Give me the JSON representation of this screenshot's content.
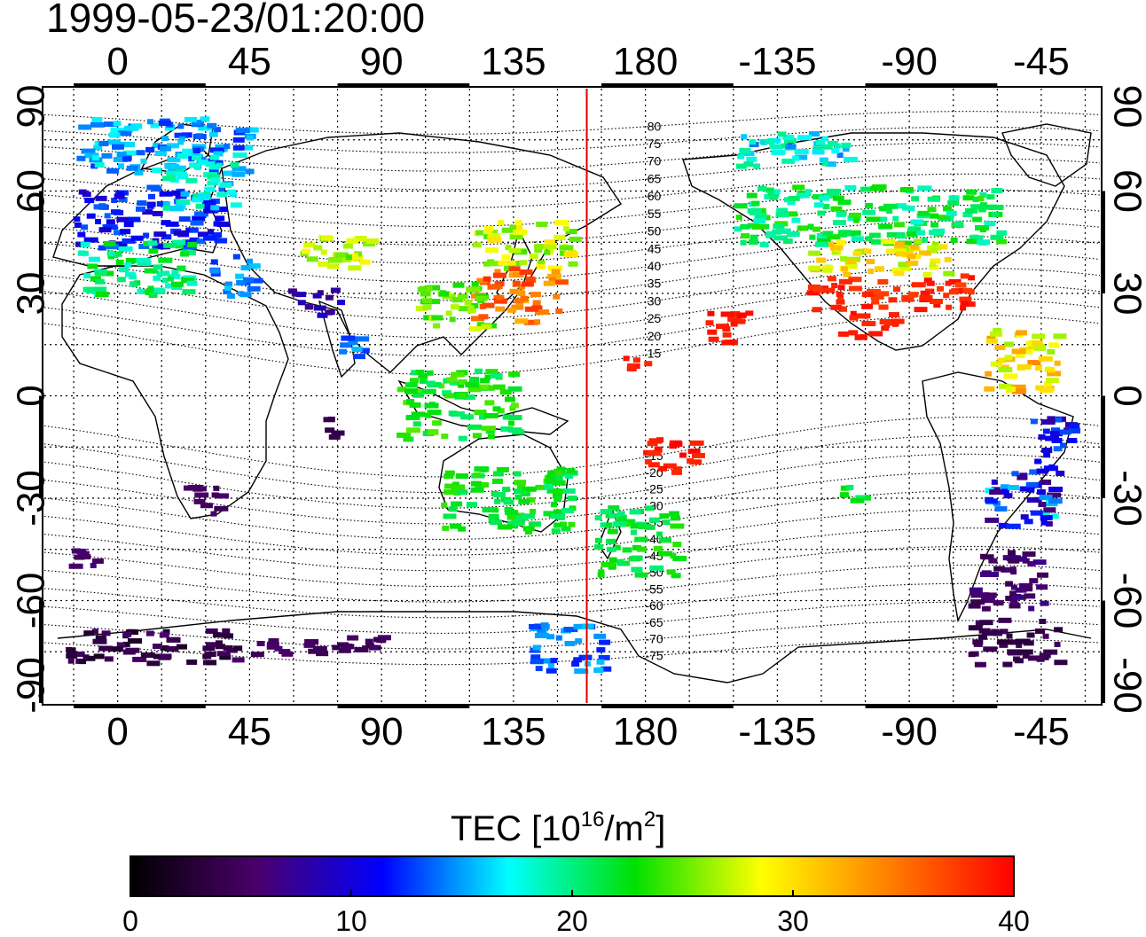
{
  "title": {
    "timestamp": "1999-05-23/01:20:00"
  },
  "map": {
    "lon_range": [
      -25,
      335
    ],
    "lat_range": [
      -90,
      90
    ],
    "projection": "equirectangular",
    "lon_tick_labels": [
      {
        "lon": 0,
        "label": "0"
      },
      {
        "lon": 45,
        "label": "45"
      },
      {
        "lon": 90,
        "label": "90"
      },
      {
        "lon": 135,
        "label": "135"
      },
      {
        "lon": 180,
        "label": "180"
      },
      {
        "lon": 225,
        "label": "-135"
      },
      {
        "lon": 270,
        "label": "-90"
      },
      {
        "lon": 315,
        "label": "-45"
      }
    ],
    "lat_tick_labels": [
      {
        "lat": 90,
        "label": "90"
      },
      {
        "lat": 60,
        "label": "60"
      },
      {
        "lat": 30,
        "label": "30"
      },
      {
        "lat": 0,
        "label": "0"
      },
      {
        "lat": -30,
        "label": "-30"
      },
      {
        "lat": -60,
        "label": "-60"
      },
      {
        "lat": -90,
        "label": "-90"
      }
    ],
    "grid_dotted": true,
    "marker_line_lon": 160,
    "marker_line_color": "#e00000",
    "magnetic_latitude_labels": [
      "80",
      "75",
      "70",
      "65",
      "60",
      "55",
      "50",
      "45",
      "40",
      "35",
      "30",
      "25",
      "20",
      "15",
      "-15",
      "-20",
      "-25",
      "-30",
      "-35",
      "-40",
      "-45",
      "-50",
      "-55",
      "-60",
      "-65",
      "-70",
      "-75"
    ]
  },
  "colorbar": {
    "title": "TEC  [10",
    "title_exp": "16",
    "title_mid": "/m",
    "title_exp2": "2",
    "title_end": "]",
    "min": 0,
    "max": 40,
    "tick_labels": [
      {
        "value": 0,
        "label": "0"
      },
      {
        "value": 10,
        "label": "10"
      },
      {
        "value": 20,
        "label": "20"
      },
      {
        "value": 30,
        "label": "30"
      },
      {
        "value": 40,
        "label": "40"
      }
    ],
    "colors": [
      "#000000",
      "#4a006a",
      "#0000ff",
      "#00ffff",
      "#00e000",
      "#ffff00",
      "#ff8000",
      "#ff0000"
    ]
  },
  "tec_regions": [
    {
      "lon": [
        -15,
        45
      ],
      "lat": [
        66,
        82
      ],
      "tec": [
        12,
        18
      ]
    },
    {
      "lon": [
        -15,
        35
      ],
      "lat": [
        44,
        62
      ],
      "tec": [
        9,
        14
      ]
    },
    {
      "lon": [
        15,
        40
      ],
      "lat": [
        55,
        72
      ],
      "tec": [
        15,
        20
      ]
    },
    {
      "lon": [
        -15,
        25
      ],
      "lat": [
        30,
        46
      ],
      "tec": [
        18,
        23
      ]
    },
    {
      "lon": [
        30,
        45
      ],
      "lat": [
        30,
        42
      ],
      "tec": [
        12,
        16
      ]
    },
    {
      "lon": [
        60,
        85
      ],
      "lat": [
        38,
        48
      ],
      "tec": [
        24,
        29
      ]
    },
    {
      "lon": [
        120,
        155
      ],
      "lat": [
        38,
        52
      ],
      "tec": [
        24,
        30
      ]
    },
    {
      "lon": [
        120,
        150
      ],
      "lat": [
        22,
        38
      ],
      "tec": [
        32,
        38
      ]
    },
    {
      "lon": [
        100,
        125
      ],
      "lat": [
        20,
        34
      ],
      "tec": [
        23,
        28
      ]
    },
    {
      "lon": [
        95,
        135
      ],
      "lat": [
        -12,
        8
      ],
      "tec": [
        20,
        25
      ]
    },
    {
      "lon": [
        110,
        155
      ],
      "lat": [
        -40,
        -20
      ],
      "tec": [
        20,
        24
      ]
    },
    {
      "lon": [
        162,
        190
      ],
      "lat": [
        -52,
        -32
      ],
      "tec": [
        20,
        24
      ]
    },
    {
      "lon": [
        178,
        198
      ],
      "lat": [
        -22,
        -12
      ],
      "tec": [
        38,
        40
      ]
    },
    {
      "lon": [
        172,
        180
      ],
      "lat": [
        8,
        12
      ],
      "tec": [
        38,
        40
      ]
    },
    {
      "lon": [
        200,
        215
      ],
      "lat": [
        16,
        26
      ],
      "tec": [
        38,
        40
      ]
    },
    {
      "lon": [
        210,
        300
      ],
      "lat": [
        45,
        62
      ],
      "tec": [
        18,
        24
      ]
    },
    {
      "lon": [
        235,
        285
      ],
      "lat": [
        36,
        46
      ],
      "tec": [
        26,
        32
      ]
    },
    {
      "lon": [
        235,
        290
      ],
      "lat": [
        26,
        36
      ],
      "tec": [
        37,
        40
      ]
    },
    {
      "lon": [
        245,
        265
      ],
      "lat": [
        17,
        25
      ],
      "tec": [
        38,
        40
      ]
    },
    {
      "lon": [
        210,
        250
      ],
      "lat": [
        68,
        78
      ],
      "tec": [
        14,
        20
      ]
    },
    {
      "lon": [
        295,
        320
      ],
      "lat": [
        2,
        20
      ],
      "tec": [
        26,
        34
      ]
    },
    {
      "lon": [
        310,
        325
      ],
      "lat": [
        -22,
        -5
      ],
      "tec": [
        8,
        14
      ]
    },
    {
      "lon": [
        295,
        320
      ],
      "lat": [
        -38,
        -22
      ],
      "tec": [
        6,
        18
      ]
    },
    {
      "lon": [
        290,
        315
      ],
      "lat": [
        -62,
        -45
      ],
      "tec": [
        4,
        7
      ]
    },
    {
      "lon": [
        290,
        320
      ],
      "lat": [
        -78,
        -65
      ],
      "tec": [
        3,
        5
      ]
    },
    {
      "lon": [
        -18,
        40
      ],
      "lat": [
        -78,
        -68
      ],
      "tec": [
        2,
        6
      ]
    },
    {
      "lon": [
        40,
        90
      ],
      "lat": [
        -75,
        -70
      ],
      "tec": [
        4,
        6
      ]
    },
    {
      "lon": [
        140,
        165
      ],
      "lat": [
        -80,
        -66
      ],
      "tec": [
        12,
        16
      ]
    },
    {
      "lon": [
        58,
        75
      ],
      "lat": [
        24,
        32
      ],
      "tec": [
        6,
        10
      ]
    },
    {
      "lon": [
        -18,
        -5
      ],
      "lat": [
        -50,
        -44
      ],
      "tec": [
        5,
        7
      ]
    },
    {
      "lon": [
        20,
        35
      ],
      "lat": [
        -34,
        -26
      ],
      "tec": [
        4,
        6
      ]
    },
    {
      "lon": [
        70,
        75
      ],
      "lat": [
        -12,
        -6
      ],
      "tec": [
        2,
        5
      ]
    },
    {
      "lon": [
        75,
        85
      ],
      "lat": [
        10,
        18
      ],
      "tec": [
        12,
        16
      ]
    },
    {
      "lon": [
        245,
        255
      ],
      "lat": [
        -30,
        -26
      ],
      "tec": [
        20,
        24
      ]
    }
  ]
}
